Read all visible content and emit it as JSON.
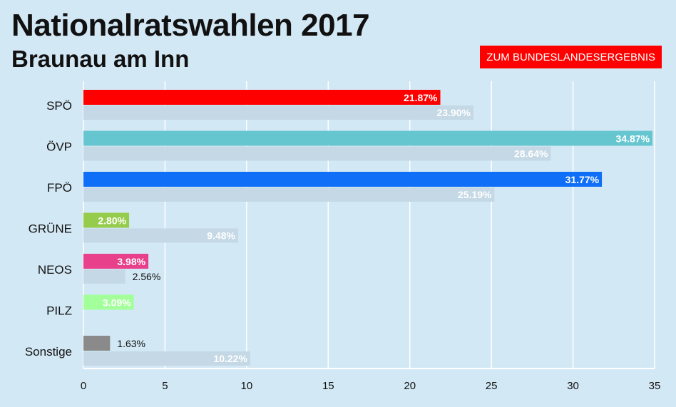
{
  "header": {
    "title": "Nationalratswahlen 2017",
    "subtitle": "Braunau am Inn",
    "button_label": "ZUM BUNDESLANDESERGEBNIS"
  },
  "colors": {
    "background": "#d3e8f5",
    "previous_bar": "#c4d8e5",
    "button": "#ff0000"
  },
  "chart_data": {
    "type": "bar",
    "orientation": "horizontal",
    "title": "",
    "xlabel": "",
    "ylabel": "",
    "xlim": [
      0,
      35
    ],
    "x_ticks": [
      0,
      5,
      10,
      15,
      20,
      25,
      30,
      35
    ],
    "grid": true,
    "categories": [
      "SPÖ",
      "ÖVP",
      "FPÖ",
      "GRÜNE",
      "NEOS",
      "PILZ",
      "Sonstige"
    ],
    "bar_colors": [
      "#ff0000",
      "#66c6d0",
      "#0f6ff7",
      "#95cc4c",
      "#e8408a",
      "#a2ff9a",
      "#8a8a8a"
    ],
    "series": [
      {
        "values": [
          21.87,
          34.87,
          31.77,
          2.8,
          3.98,
          3.09,
          1.63
        ],
        "labels": [
          "21.87%",
          "34.87%",
          "31.77%",
          "2.80%",
          "3.98%",
          "3.09%",
          "1.63%"
        ]
      },
      {
        "values": [
          23.9,
          28.64,
          25.19,
          9.48,
          2.56,
          null,
          10.22
        ],
        "labels": [
          "23.90%",
          "28.64%",
          "25.19%",
          "9.48%",
          "2.56%",
          "",
          "10.22%"
        ]
      }
    ]
  }
}
